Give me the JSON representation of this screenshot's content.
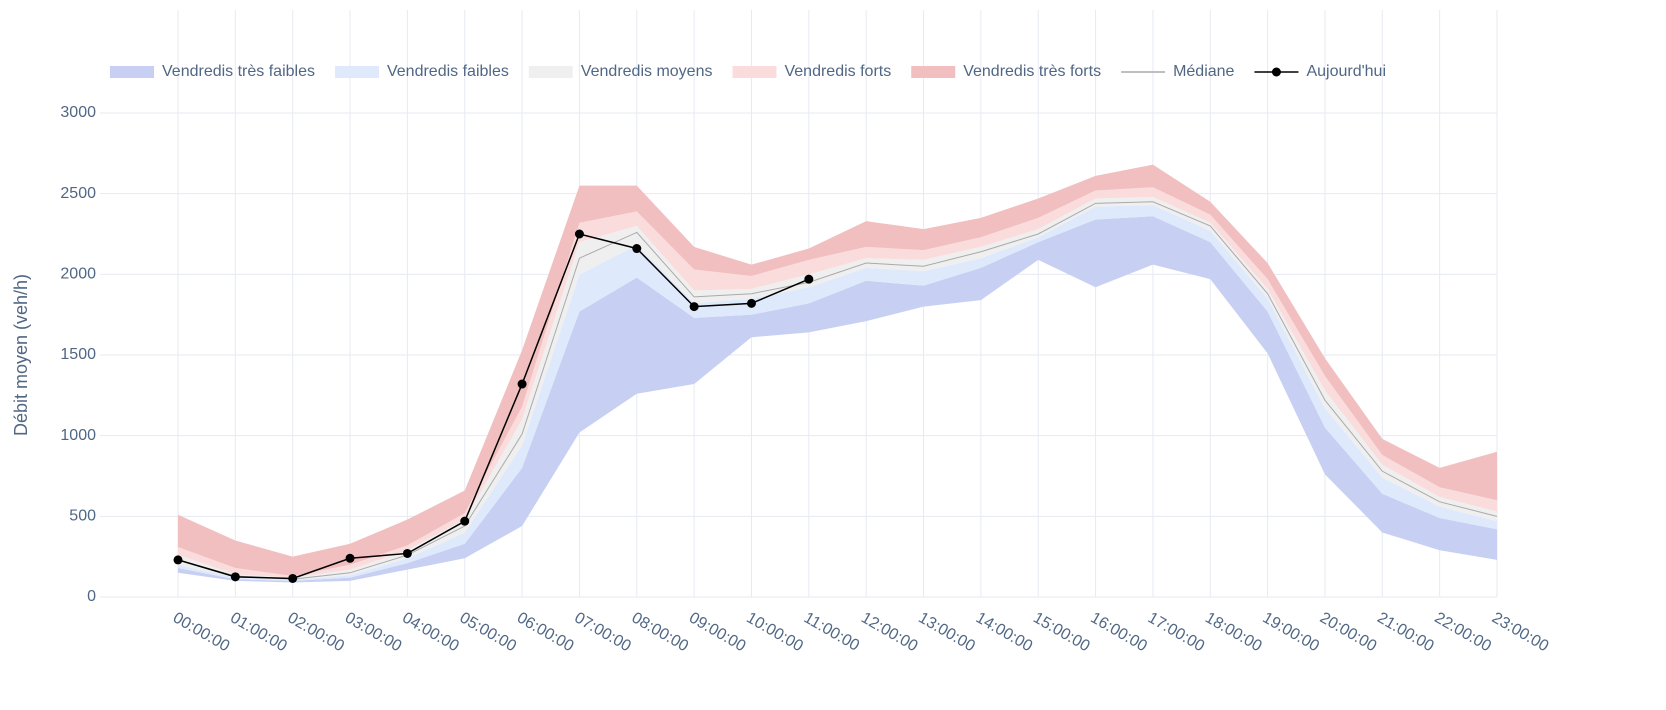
{
  "chart_data": {
    "type": "band-line",
    "y_label": "Débit moyen (veh/h)",
    "categories": [
      "00:00:00",
      "01:00:00",
      "02:00:00",
      "03:00:00",
      "04:00:00",
      "05:00:00",
      "06:00:00",
      "07:00:00",
      "08:00:00",
      "09:00:00",
      "10:00:00",
      "11:00:00",
      "12:00:00",
      "13:00:00",
      "14:00:00",
      "15:00:00",
      "16:00:00",
      "17:00:00",
      "18:00:00",
      "19:00:00",
      "20:00:00",
      "21:00:00",
      "22:00:00",
      "23:00:00"
    ],
    "ylim": [
      0,
      3000
    ],
    "yticks": [
      0,
      500,
      1000,
      1500,
      2000,
      2500,
      3000
    ],
    "grid": true,
    "bands": [
      {
        "name": "Vendredis très faibles",
        "color": "#c7d0f3",
        "lower": [
          150,
          100,
          90,
          100,
          170,
          240,
          440,
          1020,
          1260,
          1320,
          1610,
          1640,
          1710,
          1800,
          1840,
          2090,
          1920,
          2060,
          1970,
          1510,
          760,
          400,
          290,
          230
        ],
        "upper": [
          180,
          110,
          100,
          120,
          210,
          330,
          800,
          1770,
          1980,
          1730,
          1750,
          1820,
          1960,
          1930,
          2040,
          2200,
          2340,
          2360,
          2200,
          1770,
          1050,
          640,
          490,
          420
        ]
      },
      {
        "name": "Vendredis faibles",
        "color": "#dfe9fc",
        "lower": [
          180,
          110,
          100,
          120,
          210,
          330,
          800,
          1770,
          1980,
          1730,
          1750,
          1820,
          1960,
          1930,
          2040,
          2200,
          2340,
          2360,
          2200,
          1770,
          1050,
          640,
          490,
          420
        ],
        "upper": [
          200,
          120,
          105,
          135,
          240,
          400,
          940,
          2000,
          2180,
          1820,
          1850,
          1920,
          2040,
          2020,
          2100,
          2230,
          2420,
          2430,
          2270,
          1850,
          1170,
          740,
          560,
          470
        ]
      },
      {
        "name": "Vendredis moyens",
        "color": "#efefef",
        "lower": [
          200,
          120,
          105,
          135,
          240,
          400,
          940,
          2000,
          2180,
          1820,
          1850,
          1920,
          2040,
          2020,
          2100,
          2230,
          2420,
          2430,
          2270,
          1850,
          1170,
          740,
          560,
          470
        ],
        "upper": [
          260,
          140,
          120,
          170,
          290,
          480,
          1100,
          2200,
          2300,
          1900,
          1910,
          2000,
          2100,
          2090,
          2170,
          2280,
          2470,
          2480,
          2320,
          1910,
          1280,
          820,
          620,
          530
        ]
      },
      {
        "name": "Vendredis forts",
        "color": "#fbdcdc",
        "lower": [
          260,
          140,
          120,
          170,
          290,
          480,
          1100,
          2200,
          2300,
          1900,
          1910,
          2000,
          2100,
          2090,
          2170,
          2280,
          2470,
          2480,
          2320,
          1910,
          1280,
          820,
          620,
          530
        ],
        "upper": [
          310,
          180,
          130,
          200,
          320,
          520,
          1180,
          2320,
          2390,
          2030,
          1990,
          2090,
          2170,
          2150,
          2230,
          2350,
          2520,
          2540,
          2370,
          1970,
          1370,
          880,
          680,
          600
        ]
      },
      {
        "name": "Vendredis très forts",
        "color": "#f1bfbf",
        "lower": [
          310,
          180,
          130,
          200,
          320,
          520,
          1180,
          2320,
          2390,
          2030,
          1990,
          2090,
          2170,
          2150,
          2230,
          2350,
          2520,
          2540,
          2370,
          1970,
          1370,
          880,
          680,
          600
        ],
        "upper": [
          510,
          350,
          250,
          330,
          480,
          660,
          1530,
          2550,
          2550,
          2170,
          2060,
          2160,
          2330,
          2280,
          2350,
          2470,
          2610,
          2680,
          2450,
          2070,
          1480,
          980,
          800,
          900
        ]
      }
    ],
    "series": [
      {
        "name": "Médiane",
        "color": "#aaaaaa",
        "markers": false,
        "values": [
          230,
          130,
          110,
          150,
          260,
          440,
          1010,
          2100,
          2260,
          1860,
          1880,
          1950,
          2070,
          2050,
          2140,
          2250,
          2440,
          2450,
          2300,
          1880,
          1220,
          780,
          590,
          500
        ]
      },
      {
        "name": "Aujourd'hui",
        "color": "#000000",
        "markers": true,
        "values": [
          230,
          125,
          115,
          240,
          270,
          470,
          1320,
          2250,
          2160,
          1800,
          1820,
          1970,
          null,
          null,
          null,
          null,
          null,
          null,
          null,
          null,
          null,
          null,
          null,
          null
        ]
      }
    ]
  }
}
